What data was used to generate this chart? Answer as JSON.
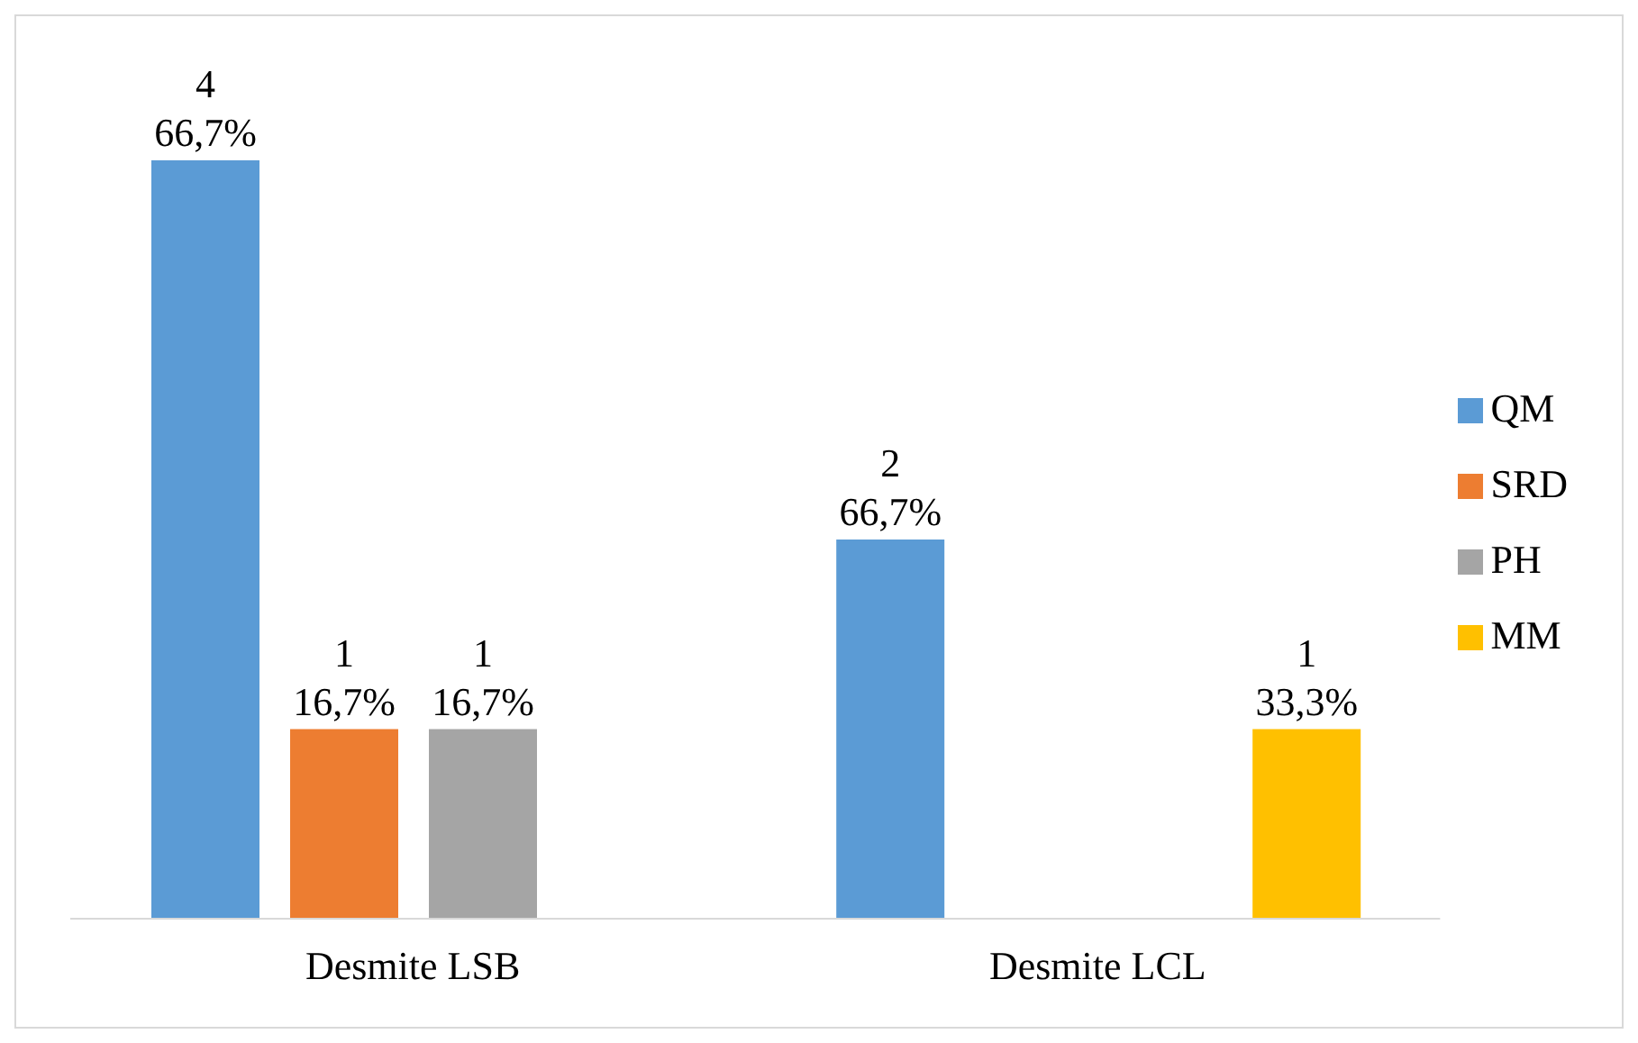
{
  "chart_data": {
    "type": "bar",
    "categories": [
      "Desmite LSB",
      "Desmite LCL"
    ],
    "series": [
      {
        "name": "QM",
        "color": "#5b9bd5",
        "values": [
          4,
          2
        ],
        "value_labels": [
          "4\n66,7%",
          "2\n66,7%"
        ]
      },
      {
        "name": "SRD",
        "color": "#ed7d31",
        "values": [
          1,
          null
        ],
        "value_labels": [
          "1\n16,7%",
          null
        ]
      },
      {
        "name": "PH",
        "color": "#a5a5a5",
        "values": [
          1,
          null
        ],
        "value_labels": [
          "1\n16,7%",
          null
        ]
      },
      {
        "name": "MM",
        "color": "#ffc000",
        "values": [
          null,
          1
        ],
        "value_labels": [
          null,
          "1\n33,3%"
        ]
      }
    ],
    "legend": "right",
    "grid": false
  }
}
